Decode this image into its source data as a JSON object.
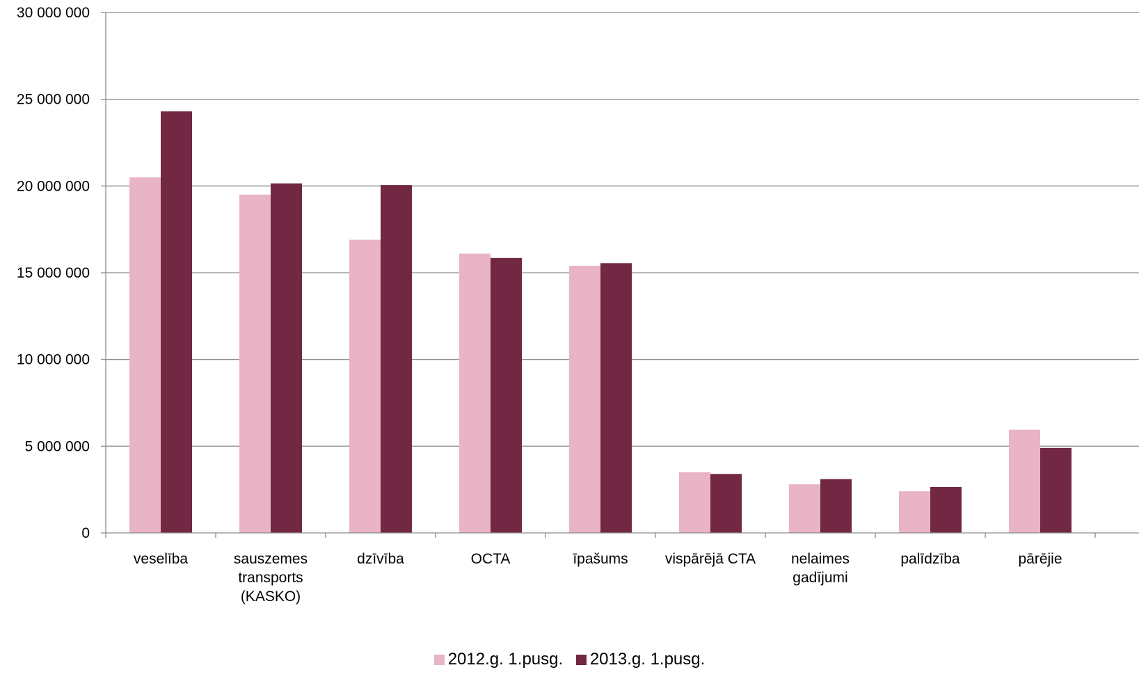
{
  "chart_data": {
    "type": "bar",
    "categories": [
      [
        "veselība"
      ],
      [
        "sauszemes",
        "transports",
        "(KASKO)"
      ],
      [
        "dzīvība"
      ],
      [
        "OCTA"
      ],
      [
        "īpašums"
      ],
      [
        "vispārējā CTA"
      ],
      [
        "nelaimes",
        "gadījumi"
      ],
      [
        "palīdzība"
      ],
      [
        "pārējie"
      ]
    ],
    "series": [
      {
        "name": "2012.g. 1.pusg.",
        "color": "#e8b4c6",
        "values": [
          20500000,
          19500000,
          16900000,
          16100000,
          15400000,
          3500000,
          2800000,
          2400000,
          5950000
        ]
      },
      {
        "name": "2013.g. 1.pusg.",
        "color": "#722843",
        "values": [
          24300000,
          20150000,
          20050000,
          15850000,
          15550000,
          3400000,
          3100000,
          2650000,
          4900000
        ]
      }
    ],
    "yticks": [
      "0",
      "5 000 000",
      "10 000 000",
      "15 000 000",
      "20 000 000",
      "25 000 000",
      "30 000 000"
    ],
    "ylim": [
      0,
      30000000
    ],
    "grid": true,
    "legend_position": "bottom-center"
  }
}
